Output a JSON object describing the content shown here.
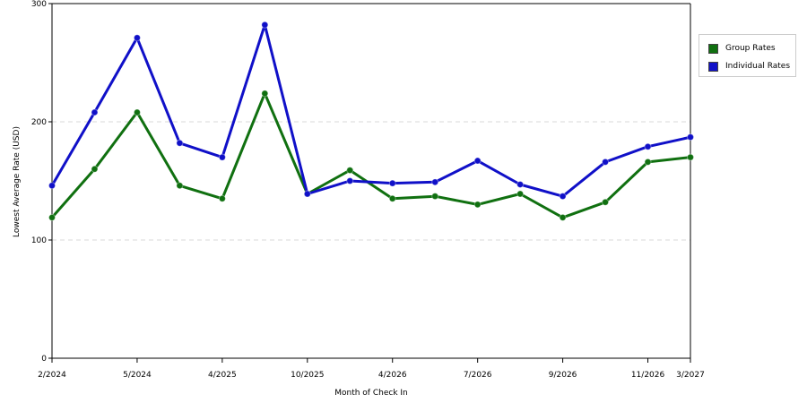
{
  "chart_data": {
    "type": "line",
    "xlabel": "Month of Check In",
    "ylabel": "Lowest Average Rate (USD)",
    "ylim": [
      0,
      300
    ],
    "yticks": [
      0,
      100,
      200,
      300
    ],
    "grid": true,
    "legend_position": "top-right",
    "x_tick_labels": [
      "2/2024",
      "",
      "5/2024",
      "",
      "4/2025",
      "",
      "10/2025",
      "",
      "4/2026",
      "",
      "7/2026",
      "",
      "9/2026",
      "",
      "11/2026",
      "3/2027"
    ],
    "series": [
      {
        "name": "Group Rates",
        "color": "#107010",
        "values": [
          119,
          160,
          208,
          146,
          135,
          224,
          139,
          159,
          135,
          137,
          130,
          139,
          119,
          132,
          166,
          170
        ]
      },
      {
        "name": "Individual Rates",
        "color": "#1010c8",
        "values": [
          146,
          208,
          271,
          182,
          170,
          282,
          139,
          150,
          148,
          149,
          167,
          147,
          137,
          166,
          179,
          187
        ]
      }
    ]
  }
}
